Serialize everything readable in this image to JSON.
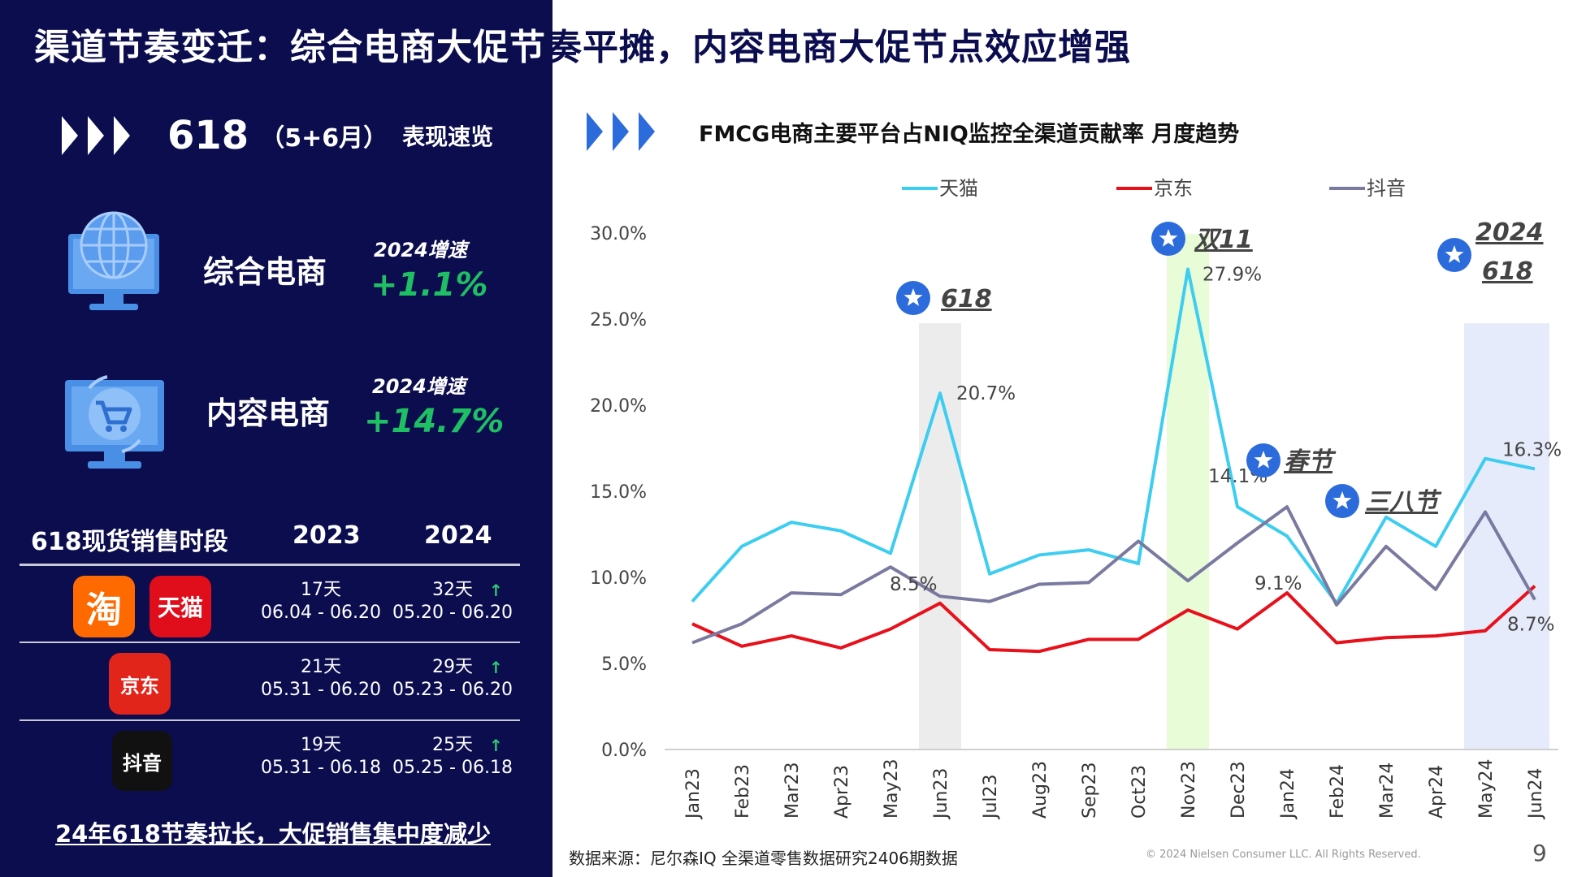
{
  "header": {
    "title_prefix": "渠道节奏变迁：综合电商大促节",
    "title_suffix": "奏平摊，内容电商大促节点效应增强"
  },
  "overview": {
    "big_number": "618",
    "paren": "（5+6月）",
    "label": "表现速览",
    "icon": "triple-chevron-icon"
  },
  "cards": [
    {
      "name": "综合电商",
      "growth_label": "2024增速",
      "growth_value": "+1.1%",
      "icon": "globe-monitor-icon"
    },
    {
      "name": "内容电商",
      "growth_label": "2024增速",
      "growth_value": "+14.7%",
      "icon": "cart-monitor-icon"
    }
  ],
  "sales_table": {
    "header": [
      "618现货销售时段",
      "2023",
      "2024"
    ],
    "rows": [
      {
        "platforms": [
          "淘",
          "天猫"
        ],
        "y2023_days": "17天",
        "y2023_range": "06.04 - 06.20",
        "y2024_days": "32天",
        "y2024_range": "05.20 - 06.20"
      },
      {
        "platforms": [
          "京东"
        ],
        "y2023_days": "21天",
        "y2023_range": "05.31 - 06.20",
        "y2024_days": "29天",
        "y2024_range": "05.23 - 06.20"
      },
      {
        "platforms": [
          "抖音"
        ],
        "y2023_days": "19天",
        "y2023_range": "05.31 - 06.18",
        "y2024_days": "25天",
        "y2024_range": "05.25 - 06.18"
      }
    ],
    "colors": {
      "taobao": "#ff6a00",
      "tmall": "#e00d1b",
      "jd": "#e1251b",
      "douyin": "#111111"
    }
  },
  "left_footer": "24年618节奏拉长，大促销售集中度减少",
  "chart_header": {
    "title": "FMCG电商主要平台占NIQ监控全渠道贡献率 月度趋势"
  },
  "chart_data": {
    "type": "line",
    "title": "FMCG电商主要平台占NIQ监控全渠道贡献率 月度趋势",
    "x": [
      "Jan23",
      "Feb23",
      "Mar23",
      "Apr23",
      "May23",
      "Jun23",
      "Jul23",
      "Aug23",
      "Sep23",
      "Oct23",
      "Nov23",
      "Dec23",
      "Jan24",
      "Feb24",
      "Mar24",
      "Apr24",
      "May24",
      "Jun24"
    ],
    "series": [
      {
        "name": "天猫",
        "color": "#3ccdf0",
        "values": [
          8.6,
          11.8,
          13.2,
          12.7,
          11.4,
          20.7,
          10.2,
          11.3,
          11.6,
          10.8,
          27.9,
          14.1,
          12.4,
          8.5,
          13.5,
          11.8,
          16.9,
          16.3
        ]
      },
      {
        "name": "京东",
        "color": "#e8101a",
        "values": [
          7.3,
          6.0,
          6.6,
          5.9,
          7.0,
          8.5,
          5.8,
          5.7,
          6.4,
          6.4,
          8.1,
          7.0,
          9.1,
          6.2,
          6.5,
          6.6,
          6.9,
          9.5
        ]
      },
      {
        "name": "抖音",
        "color": "#7a7aa0",
        "values": [
          6.2,
          7.3,
          9.1,
          9.0,
          10.6,
          8.9,
          8.6,
          9.6,
          9.7,
          12.1,
          9.8,
          12.0,
          14.1,
          8.4,
          11.8,
          9.3,
          13.8,
          8.7
        ]
      }
    ],
    "ylim": [
      0,
      30
    ],
    "yticks": [
      "0.0%",
      "5.0%",
      "10.0%",
      "15.0%",
      "20.0%",
      "25.0%",
      "30.0%"
    ],
    "legend": "top",
    "grid": false,
    "data_labels": [
      {
        "series": 0,
        "index": 5,
        "text": "20.7%"
      },
      {
        "series": 1,
        "index": 5,
        "text": "8.5%"
      },
      {
        "series": 0,
        "index": 10,
        "text": "27.9%"
      },
      {
        "series": 0,
        "index": 11,
        "text": "14.1%"
      },
      {
        "series": 1,
        "index": 12,
        "text": "9.1%"
      },
      {
        "series": 0,
        "index": 17,
        "text": "16.3%"
      },
      {
        "series": 2,
        "index": 17,
        "text": "8.7%"
      }
    ],
    "highlights": [
      {
        "from": "Jun23",
        "to": "Jun23",
        "color": "#ececec"
      },
      {
        "from": "Nov23",
        "to": "Nov23",
        "color": "#e8fcd8"
      },
      {
        "from": "May24",
        "to": "Jun24",
        "color": "#e5ebfa"
      }
    ],
    "event_markers": [
      {
        "label": "618",
        "anchor": "Jun23"
      },
      {
        "label": "双11",
        "anchor": "Nov23"
      },
      {
        "label": "春节",
        "anchor": "Jan24"
      },
      {
        "label": "三八节",
        "anchor": "Mar24"
      },
      {
        "label": "2024",
        "label2": "618",
        "anchor": "Jun24"
      }
    ]
  },
  "footer": {
    "source": "数据来源：尼尔森IQ 全渠道零售数据研究2406期数据",
    "copyright": "© 2024 Nielsen Consumer LLC. All Rights Reserved.",
    "page": "9"
  }
}
